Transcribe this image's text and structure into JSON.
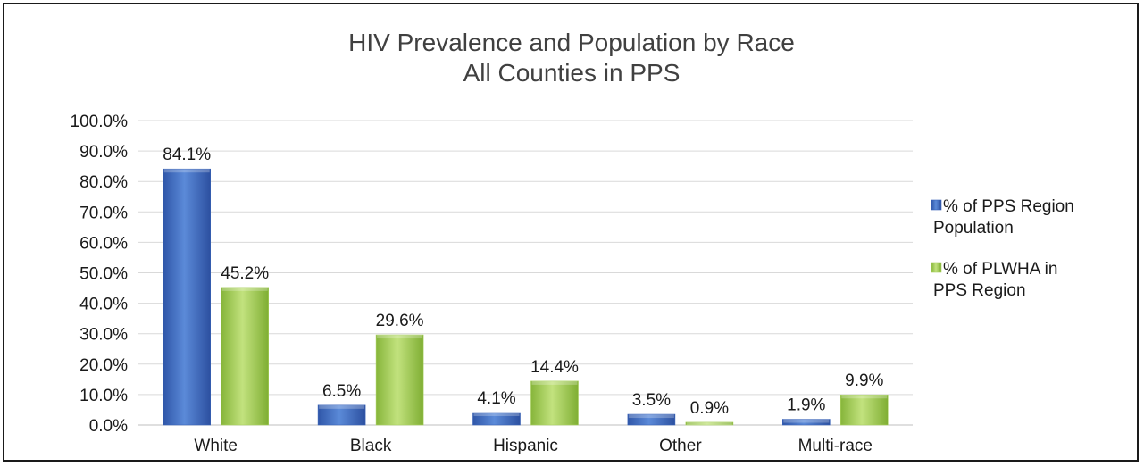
{
  "chart_data": {
    "type": "bar",
    "title": "HIV Prevalence and Population by Race",
    "subtitle": "All Counties in PPS",
    "categories": [
      "White",
      "Black",
      "Hispanic",
      "Other",
      "Multi-race"
    ],
    "series": [
      {
        "name": "% of PPS Region Population",
        "legend_lines": [
          "% of PPS Region",
          "Population"
        ],
        "color": "#4472c4",
        "values": [
          84.1,
          6.5,
          4.1,
          3.5,
          1.9
        ],
        "labels": [
          "84.1%",
          "6.5%",
          "4.1%",
          "3.5%",
          "1.9%"
        ]
      },
      {
        "name": "% of PLWHA in PPS Region",
        "legend_lines": [
          "% of PLWHA in",
          "PPS Region"
        ],
        "color": "#9bc64f",
        "values": [
          45.2,
          29.6,
          14.4,
          0.9,
          9.9
        ],
        "labels": [
          "45.2%",
          "29.6%",
          "14.4%",
          "0.9%",
          "9.9%"
        ]
      }
    ],
    "xlabel": "",
    "ylabel": "",
    "ylim": [
      0,
      100
    ],
    "yticks": [
      "0.0%",
      "10.0%",
      "20.0%",
      "30.0%",
      "40.0%",
      "50.0%",
      "60.0%",
      "70.0%",
      "80.0%",
      "90.0%",
      "100.0%"
    ],
    "grid": true,
    "legend_position": "right"
  }
}
